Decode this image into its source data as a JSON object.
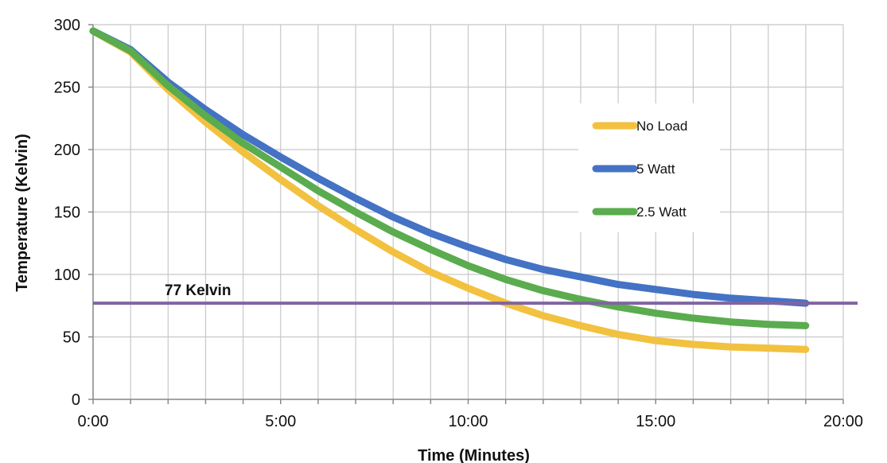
{
  "chart_data": {
    "type": "line",
    "xlabel": "Time (Minutes)",
    "ylabel": "Temperature (Kelvin)",
    "xlim": [
      0,
      20
    ],
    "ylim": [
      0,
      300
    ],
    "x_ticks": [
      0,
      5,
      10,
      15,
      20
    ],
    "x_tick_labels": [
      "0:00",
      "5:00",
      "10:00",
      "15:00",
      "20:00"
    ],
    "y_ticks": [
      0,
      50,
      100,
      150,
      200,
      250,
      300
    ],
    "y_tick_labels": [
      "0",
      "50",
      "100",
      "150",
      "200",
      "250",
      "300"
    ],
    "vertical_grid_step": 1,
    "grid": true,
    "legend_position": "right",
    "series": [
      {
        "name": "No Load",
        "color": "#f2c13f",
        "x": [
          0,
          1,
          2,
          3,
          4,
          5,
          6,
          7,
          8,
          9,
          10,
          11,
          12,
          13,
          14,
          15,
          16,
          17,
          18,
          19
        ],
        "values": [
          295,
          278,
          248,
          222,
          198,
          176,
          155,
          136,
          118,
          102,
          89,
          77,
          67,
          59,
          52,
          47,
          44,
          42,
          41,
          40
        ]
      },
      {
        "name": "5 Watt",
        "color": "#4472c4",
        "x": [
          0,
          1,
          2,
          3,
          4,
          5,
          6,
          7,
          8,
          9,
          10,
          11,
          12,
          13,
          14,
          15,
          16,
          17,
          18,
          19
        ],
        "values": [
          295,
          280,
          254,
          232,
          212,
          194,
          177,
          161,
          146,
          133,
          122,
          112,
          104,
          98,
          92,
          88,
          84,
          81,
          79,
          77
        ]
      },
      {
        "name": "2.5 Watt",
        "color": "#5aac4e",
        "x": [
          0,
          1,
          2,
          3,
          4,
          5,
          6,
          7,
          8,
          9,
          10,
          11,
          12,
          13,
          14,
          15,
          16,
          17,
          18,
          19
        ],
        "values": [
          295,
          279,
          251,
          227,
          205,
          186,
          167,
          150,
          134,
          120,
          107,
          96,
          87,
          80,
          74,
          69,
          65,
          62,
          60,
          59
        ]
      }
    ],
    "reference_line": {
      "label": "77 Kelvin",
      "value": 77,
      "color": "#8064a2"
    }
  }
}
